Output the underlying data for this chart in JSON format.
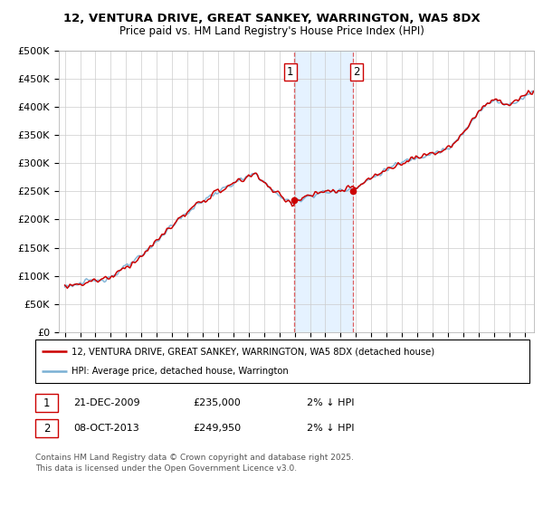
{
  "title1": "12, VENTURA DRIVE, GREAT SANKEY, WARRINGTON, WA5 8DX",
  "title2": "Price paid vs. HM Land Registry's House Price Index (HPI)",
  "ytick_labels": [
    "£0",
    "£50K",
    "£100K",
    "£150K",
    "£200K",
    "£250K",
    "£300K",
    "£350K",
    "£400K",
    "£450K",
    "£500K"
  ],
  "ytick_values": [
    0,
    50000,
    100000,
    150000,
    200000,
    250000,
    300000,
    350000,
    400000,
    450000,
    500000
  ],
  "ylim": [
    0,
    500000
  ],
  "legend_label_red": "12, VENTURA DRIVE, GREAT SANKEY, WARRINGTON, WA5 8DX (detached house)",
  "legend_label_blue": "HPI: Average price, detached house, Warrington",
  "annotation1_date": "21-DEC-2009",
  "annotation1_price": "£235,000",
  "annotation1_hpi": "2% ↓ HPI",
  "annotation2_date": "08-OCT-2013",
  "annotation2_price": "£249,950",
  "annotation2_hpi": "2% ↓ HPI",
  "footer": "Contains HM Land Registry data © Crown copyright and database right 2025.\nThis data is licensed under the Open Government Licence v3.0.",
  "red_color": "#cc0000",
  "blue_color": "#7ab0d4",
  "shade_color": "#ddeeff",
  "vline_color": "#dd4444",
  "background_color": "#ffffff",
  "grid_color": "#cccccc",
  "sale1_x": 2009.97,
  "sale2_x": 2013.78,
  "sale1_price": 235000,
  "sale2_price": 249950
}
